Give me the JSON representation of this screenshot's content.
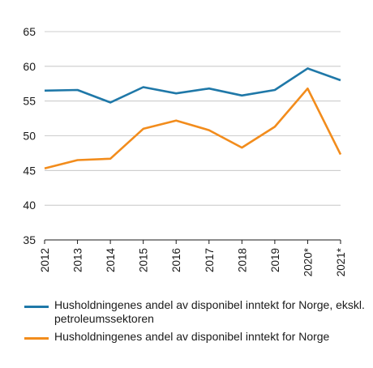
{
  "chart_data": {
    "type": "line",
    "categories": [
      "2012",
      "2013",
      "2014",
      "2015",
      "2016",
      "2017",
      "2018",
      "2019",
      "2020*",
      "2021*"
    ],
    "series": [
      {
        "name": "Husholdningenes andel av disponibel inntekt for Norge, ekskl. petroleumssektoren",
        "color": "#1f78a8",
        "values": [
          56.5,
          56.6,
          54.8,
          57.0,
          56.1,
          56.8,
          55.8,
          56.6,
          59.7,
          58.0
        ]
      },
      {
        "name": "Husholdningenes andel av disponibel inntekt for Norge",
        "color": "#f28c1c",
        "values": [
          45.3,
          46.5,
          46.7,
          51.0,
          52.2,
          50.8,
          48.3,
          51.3,
          56.8,
          47.3
        ]
      }
    ],
    "yticks": [
      "35",
      "40",
      "45",
      "50",
      "55",
      "60",
      "65"
    ],
    "ylim": [
      35,
      65
    ],
    "grid": true,
    "legend_position": "bottom"
  }
}
